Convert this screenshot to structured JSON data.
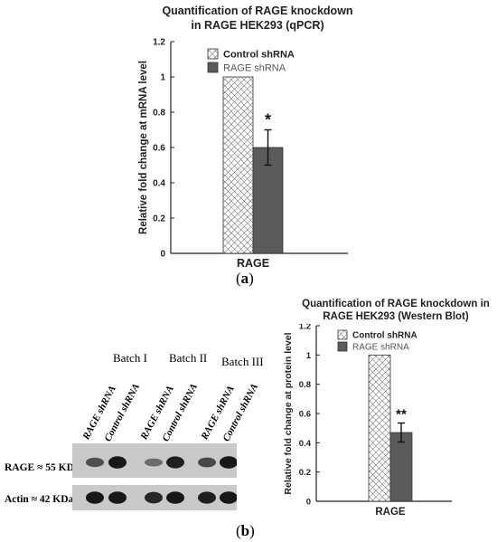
{
  "panel_a": {
    "caption": "(a)",
    "caption_letter": "a"
  },
  "panel_b": {
    "caption": "(b)",
    "caption_letter": "b",
    "blot": {
      "batches": [
        "Batch I",
        "Batch II",
        "Batch III"
      ],
      "lane_labels": [
        "RAGE shRNA",
        "Control shRNA",
        "RAGE shRNA",
        "Control shRNA",
        "RAGE shRNA",
        "Control shRNA"
      ],
      "rows": [
        {
          "label": "RAGE ≈ 55 KDa",
          "intensities": [
            0.55,
            0.95,
            0.35,
            0.9,
            0.6,
            0.95
          ]
        },
        {
          "label": "Actin ≈ 42 KDa",
          "intensities": [
            0.95,
            0.95,
            0.85,
            0.95,
            0.9,
            0.95
          ]
        }
      ]
    }
  },
  "colors": {
    "control_hatch_line": "#555555",
    "rage_fill": "#5a5a5a",
    "axis": "#222222",
    "title": "#222222",
    "blot_bg": "#c9c9c9",
    "band": "#111111"
  },
  "chart_data": [
    {
      "type": "bar",
      "title": "Quantification of RAGE knockdown in RAGE HEK293 (qPCR)",
      "title_lines": [
        "Quantification of RAGE knockdown",
        "in RAGE HEK293 (qPCR)"
      ],
      "xlabel": "RAGE",
      "ylabel": "Relative fold change at mRNA level",
      "categories": [
        "RAGE"
      ],
      "ylim": [
        0,
        1.2
      ],
      "yticks": [
        "0",
        "0.2",
        "0.4",
        "0.6",
        "0.8",
        "1",
        "1.2"
      ],
      "legend_position": "top-right",
      "series": [
        {
          "name": "Control shRNA",
          "values": [
            1.0
          ],
          "error": [
            0
          ],
          "pattern": "crosshatch",
          "annotation": ""
        },
        {
          "name": "RAGE shRNA",
          "values": [
            0.6
          ],
          "error": [
            0.1
          ],
          "pattern": "solid",
          "annotation": "*"
        }
      ]
    },
    {
      "type": "bar",
      "title": "Quantification of RAGE knockdown in RAGE HEK293 (Western Blot)",
      "title_lines": [
        "Quantification of RAGE knockdown in",
        "RAGE HEK293 (Western Blot)"
      ],
      "xlabel": "RAGE",
      "ylabel": "Relative fold change at protein level",
      "categories": [
        "RAGE"
      ],
      "ylim": [
        0,
        1.2
      ],
      "yticks": [
        "0",
        "0.2",
        "0.4",
        "0.6",
        "0.8",
        "1",
        "1.2"
      ],
      "legend_position": "top",
      "series": [
        {
          "name": "Control shRNA",
          "values": [
            1.0
          ],
          "error": [
            0
          ],
          "pattern": "crosshatch",
          "annotation": ""
        },
        {
          "name": "RAGE shRNA",
          "values": [
            0.47
          ],
          "error": [
            0.065
          ],
          "pattern": "solid",
          "annotation": "**"
        }
      ]
    }
  ]
}
